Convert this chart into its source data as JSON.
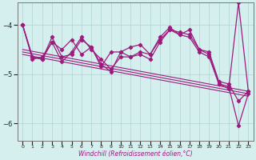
{
  "xlabel": "Windchill (Refroidissement éolien,°C)",
  "x": [
    0,
    1,
    2,
    3,
    4,
    5,
    6,
    7,
    8,
    9,
    10,
    11,
    12,
    13,
    14,
    15,
    16,
    17,
    18,
    19,
    20,
    21,
    22,
    23
  ],
  "line_up": [
    -4.0,
    -4.7,
    -4.65,
    -4.35,
    -4.5,
    -4.3,
    -4.6,
    -4.45,
    -4.85,
    -4.55,
    -4.55,
    -4.45,
    -4.4,
    -4.6,
    -4.25,
    -4.05,
    -4.2,
    -4.1,
    -4.5,
    -4.55,
    -5.15,
    -5.2,
    -5.55,
    -5.35
  ],
  "line_jagged_up": [
    -4.0,
    -4.65,
    -4.7,
    -4.25,
    -4.65,
    -4.6,
    -4.3,
    -4.45,
    -4.8,
    -4.95,
    -4.55,
    -4.65,
    -4.55,
    -4.6,
    -4.3,
    -4.1,
    -4.15,
    -4.2,
    -4.5,
    -4.6,
    -5.2,
    -5.25,
    -6.05,
    -5.4
  ],
  "line_big_rise": [
    -4.0,
    -4.65,
    -4.7,
    -4.35,
    -4.75,
    -4.55,
    -4.25,
    -4.5,
    -4.7,
    -4.9,
    -4.65,
    -4.65,
    -4.6,
    -4.7,
    -4.35,
    -4.1,
    -4.2,
    -4.25,
    -4.55,
    -4.65,
    -5.2,
    -5.3,
    -3.55,
    -5.35
  ],
  "trend1_x": [
    0,
    23
  ],
  "trend1_y": [
    -4.5,
    -5.35
  ],
  "trend2_x": [
    0,
    23
  ],
  "trend2_y": [
    -4.55,
    -5.4
  ],
  "trend3_x": [
    0,
    23
  ],
  "trend3_y": [
    -4.6,
    -5.45
  ],
  "line_color": "#9b1c7c",
  "bg_color": "#d5efee",
  "grid_color": "#aed4d2",
  "ylim": [
    -6.35,
    -3.55
  ],
  "yticks": [
    -6,
    -5,
    -4
  ],
  "xlim": [
    -0.5,
    23.5
  ],
  "xticks": [
    0,
    1,
    2,
    3,
    4,
    5,
    6,
    7,
    8,
    9,
    10,
    11,
    12,
    13,
    14,
    15,
    16,
    17,
    18,
    19,
    20,
    21,
    22,
    23
  ]
}
